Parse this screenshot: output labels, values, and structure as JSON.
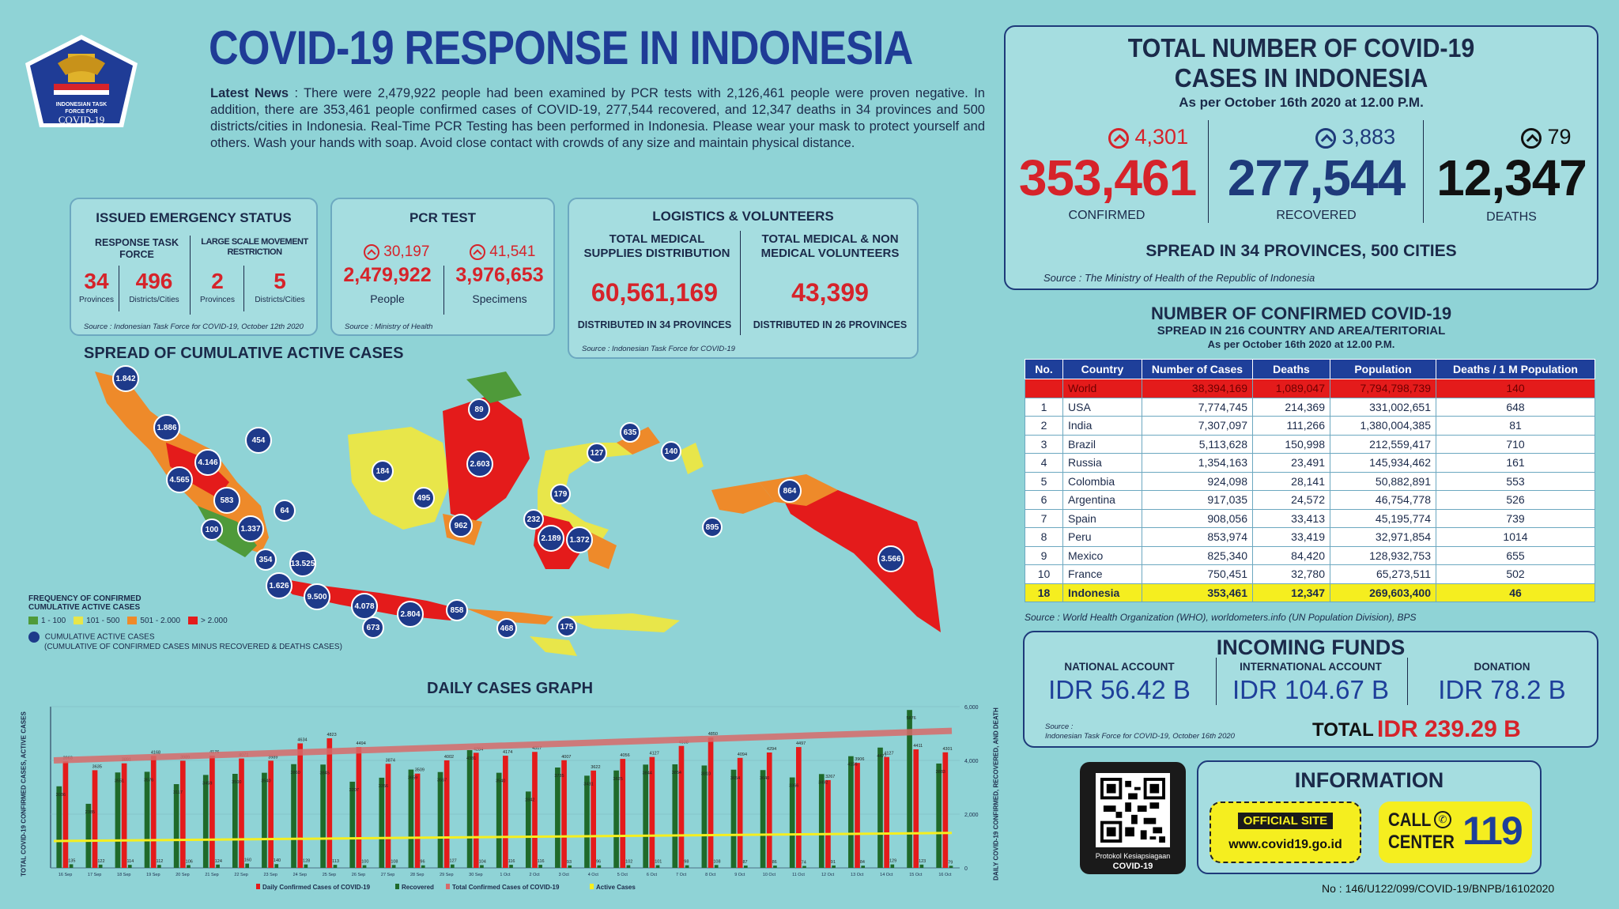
{
  "logo": {
    "line1": "INDONESIAN TASK",
    "line2": "FORCE FOR",
    "line3": "COVID-19"
  },
  "title": "COVID-19 RESPONSE IN INDONESIA",
  "news": {
    "label": "Latest News",
    "text": " : There were 2,479,922 people had been examined by PCR tests with 2,126,461 people were proven negative. In addition, there are 353,461 people confirmed cases of COVID-19, 277,544 recovered, and 12,347 deaths in 34 provinces and 500 districts/cities in Indonesia. Real-Time PCR Testing has been performed in Indonesia. Please wear your mask to protect yourself and others. Wash your hands with soap. Avoid close contact with crowds of any size and maintain physical distance."
  },
  "emergency": {
    "title": "ISSUED EMERGENCY STATUS",
    "col1_title": "RESPONSE TASK FORCE",
    "col2_title": "LARGE SCALE MOVEMENT RESTRICTION",
    "v1": "34",
    "l1": "Provinces",
    "v2": "496",
    "l2": "Districts/Cities",
    "v3": "2",
    "l3": "Provinces",
    "v4": "5",
    "l4": "Districts/Cities",
    "source": "Source : Indonesian Task Force for COVID-19, October 12th 2020"
  },
  "pcr": {
    "title": "PCR TEST",
    "inc1": "30,197",
    "val1": "2,479,922",
    "lab1": "People",
    "inc2": "41,541",
    "val2": "3,976,653",
    "lab2": "Specimens",
    "source": "Source : Ministry of Health"
  },
  "logistics": {
    "title": "LOGISTICS & VOLUNTEERS",
    "c1_title": "TOTAL MEDICAL SUPPLIES DISTRIBUTION",
    "c1_val": "60,561,169",
    "c1_note": "DISTRIBUTED IN 34 PROVINCES",
    "c2_title": "TOTAL MEDICAL & NON MEDICAL VOLUNTEERS",
    "c2_val": "43,399",
    "c2_note": "DISTRIBUTED IN 26 PROVINCES",
    "source": "Source : Indonesian Task Force for COVID-19"
  },
  "totals": {
    "title1": "TOTAL NUMBER OF COVID-19",
    "title2": "CASES IN INDONESIA",
    "asof": "As per October 16th 2020 at 12.00 P.M.",
    "confirmed_inc": "4,301",
    "confirmed": "353,461",
    "confirmed_lab": "CONFIRMED",
    "recovered_inc": "3,883",
    "recovered": "277,544",
    "recovered_lab": "RECOVERED",
    "deaths_inc": "79",
    "deaths": "12,347",
    "deaths_lab": "DEATHS",
    "spread": "SPREAD IN 34 PROVINCES, 500 CITIES",
    "source": "Source : The Ministry of Health of the Republic of Indonesia"
  },
  "world": {
    "title": "NUMBER OF CONFIRMED COVID-19",
    "subtitle": "SPREAD IN 216 COUNTRY AND AREA/TERITORIAL",
    "asof": "As per October 16th 2020 at 12.00 P.M.",
    "headers": [
      "No.",
      "Country",
      "Number of Cases",
      "Deaths",
      "Population",
      "Deaths / 1 M Population"
    ],
    "rows": [
      [
        "",
        "World",
        "38,394,169",
        "1,089,047",
        "7,794,798,739",
        "140"
      ],
      [
        "1",
        "USA",
        "7,774,745",
        "214,369",
        "331,002,651",
        "648"
      ],
      [
        "2",
        "India",
        "7,307,097",
        "111,266",
        "1,380,004,385",
        "81"
      ],
      [
        "3",
        "Brazil",
        "5,113,628",
        "150,998",
        "212,559,417",
        "710"
      ],
      [
        "4",
        "Russia",
        "1,354,163",
        "23,491",
        "145,934,462",
        "161"
      ],
      [
        "5",
        "Colombia",
        "924,098",
        "28,141",
        "50,882,891",
        "553"
      ],
      [
        "6",
        "Argentina",
        "917,035",
        "24,572",
        "46,754,778",
        "526"
      ],
      [
        "7",
        "Spain",
        "908,056",
        "33,413",
        "45,195,774",
        "739"
      ],
      [
        "8",
        "Peru",
        "853,974",
        "33,419",
        "32,971,854",
        "1014"
      ],
      [
        "9",
        "Mexico",
        "825,340",
        "84,420",
        "128,932,753",
        "655"
      ],
      [
        "10",
        "France",
        "750,451",
        "32,780",
        "65,273,511",
        "502"
      ],
      [
        "18",
        "Indonesia",
        "353,461",
        "12,347",
        "269,603,400",
        "46"
      ]
    ],
    "source": "Source : World Health Organization (WHO), worldometers.info (UN Population Division), BPS"
  },
  "funds": {
    "title": "INCOMING FUNDS",
    "l1": "NATIONAL ACCOUNT",
    "v1": "IDR 56.42 B",
    "l2": "INTERNATIONAL ACCOUNT",
    "v2": "IDR 104.67 B",
    "l3": "DONATION",
    "v3": "IDR 78.2 B",
    "total_label": "TOTAL",
    "total": "IDR 239.29 B",
    "source1": "Source :",
    "source2": "Indonesian Task Force for COVID-19, October 16th 2020"
  },
  "qr": {
    "line1": "Protokol Kesiapsiagaan",
    "line2": "COVID-19"
  },
  "info": {
    "title": "INFORMATION",
    "site_label": "OFFICIAL SITE",
    "site": "www.covid19.go.id",
    "call1": "CALL",
    "call2": "CENTER",
    "call_num": "119"
  },
  "map": {
    "title": "SPREAD OF CUMULATIVE ACTIVE CASES",
    "legend_title1": "FREQUENCY OF CONFIRMED",
    "legend_title2": "CUMULATIVE ACTIVE CASES",
    "legend": [
      {
        "label": "1 - 100",
        "color": "#4f9a3a"
      },
      {
        "label": "101 - 500",
        "color": "#e8e64a"
      },
      {
        "label": "501 - 2.000",
        "color": "#ee8a2a"
      },
      {
        "label": "> 2.000",
        "color": "#e41b1b"
      }
    ],
    "circle_label": "CUMULATIVE ACTIVE CASES",
    "circle_note": "(CUMULATIVE OF CONFIRMED CASES MINUS RECOVERED & DEATHS CASES)",
    "circles": [
      "1.842",
      "1.886",
      "454",
      "4.146",
      "4.565",
      "583",
      "64",
      "100",
      "1.337",
      "354",
      "13.525",
      "1.626",
      "9.500",
      "4.078",
      "673",
      "2.804",
      "858",
      "89",
      "184",
      "2.603",
      "495",
      "962",
      "127",
      "635",
      "140",
      "179",
      "232",
      "2.189",
      "1.372",
      "895",
      "864",
      "3.566",
      "468",
      "175"
    ]
  },
  "chart_data": {
    "type": "bar",
    "title": "DAILY CASES GRAPH",
    "ylabel_left": "TOTAL COVID-19 CONFIRMED CASES, ACTIVE CASES",
    "ylabel_right": "DAILY COVID-19 CONFIRMED, RECOVERED, AND DEATH",
    "categories": [
      "16 Sep",
      "17 Sep",
      "18 Sep",
      "19 Sep",
      "20 Sep",
      "21 Sep",
      "22 Sep",
      "23 Sep",
      "24 Sep",
      "25 Sep",
      "26 Sep",
      "27 Sep",
      "28 Sep",
      "29 Sep",
      "30 Sep",
      "1 Oct",
      "2 Oct",
      "3 Oct",
      "4 Oct",
      "5 Oct",
      "6 Oct",
      "7 Oct",
      "8 Oct",
      "9 Oct",
      "10 Oct",
      "11 Oct",
      "12 Oct",
      "13 Oct",
      "14 Oct",
      "15 Oct",
      "16 Oct"
    ],
    "series": [
      {
        "name": "Daily Confirmed Cases of COVID-19",
        "color": "#e41b1b",
        "values": [
          3963,
          3635,
          3891,
          4168,
          3989,
          4176,
          4071,
          3989,
          4634,
          4823,
          4494,
          3874,
          3509,
          4002,
          4284,
          4174,
          4317,
          4007,
          3622,
          4056,
          4127,
          4538,
          4850,
          4094,
          4294,
          4497,
          3267,
          3906,
          4127,
          4411,
          4301
        ]
      },
      {
        "name": "Recovered",
        "color": "#1f6a2a",
        "values": [
          3036,
          2385,
          3551,
          3576,
          3117,
          3459,
          3500,
          3540,
          3860,
          3845,
          3207,
          3356,
          3659,
          3567,
          4381,
          3540,
          2842,
          3735,
          3431,
          3625,
          3844,
          3854,
          3810,
          3654,
          3640,
          3366,
          3492,
          4156,
          4477,
          5876,
          3883
        ]
      },
      {
        "name": "Deaths",
        "color": "#1f6a2a",
        "values": [
          135,
          122,
          114,
          112,
          106,
          124,
          160,
          140,
          128,
          113,
          100,
          108,
          96,
          127,
          104,
          116,
          116,
          93,
          96,
          102,
          101,
          98,
          108,
          87,
          86,
          74,
          91,
          84,
          129,
          123,
          79
        ]
      }
    ],
    "legend": [
      "Daily Confirmed Cases of COVID-19",
      "Recovered",
      "Total Confirmed Cases of COVID-19",
      "Active Cases"
    ],
    "y_ticks_right": [
      "0",
      "2,000",
      "4,000",
      "6,000"
    ]
  },
  "footer": "No : 146/U122/099/COVID-19/BNPB/16102020"
}
